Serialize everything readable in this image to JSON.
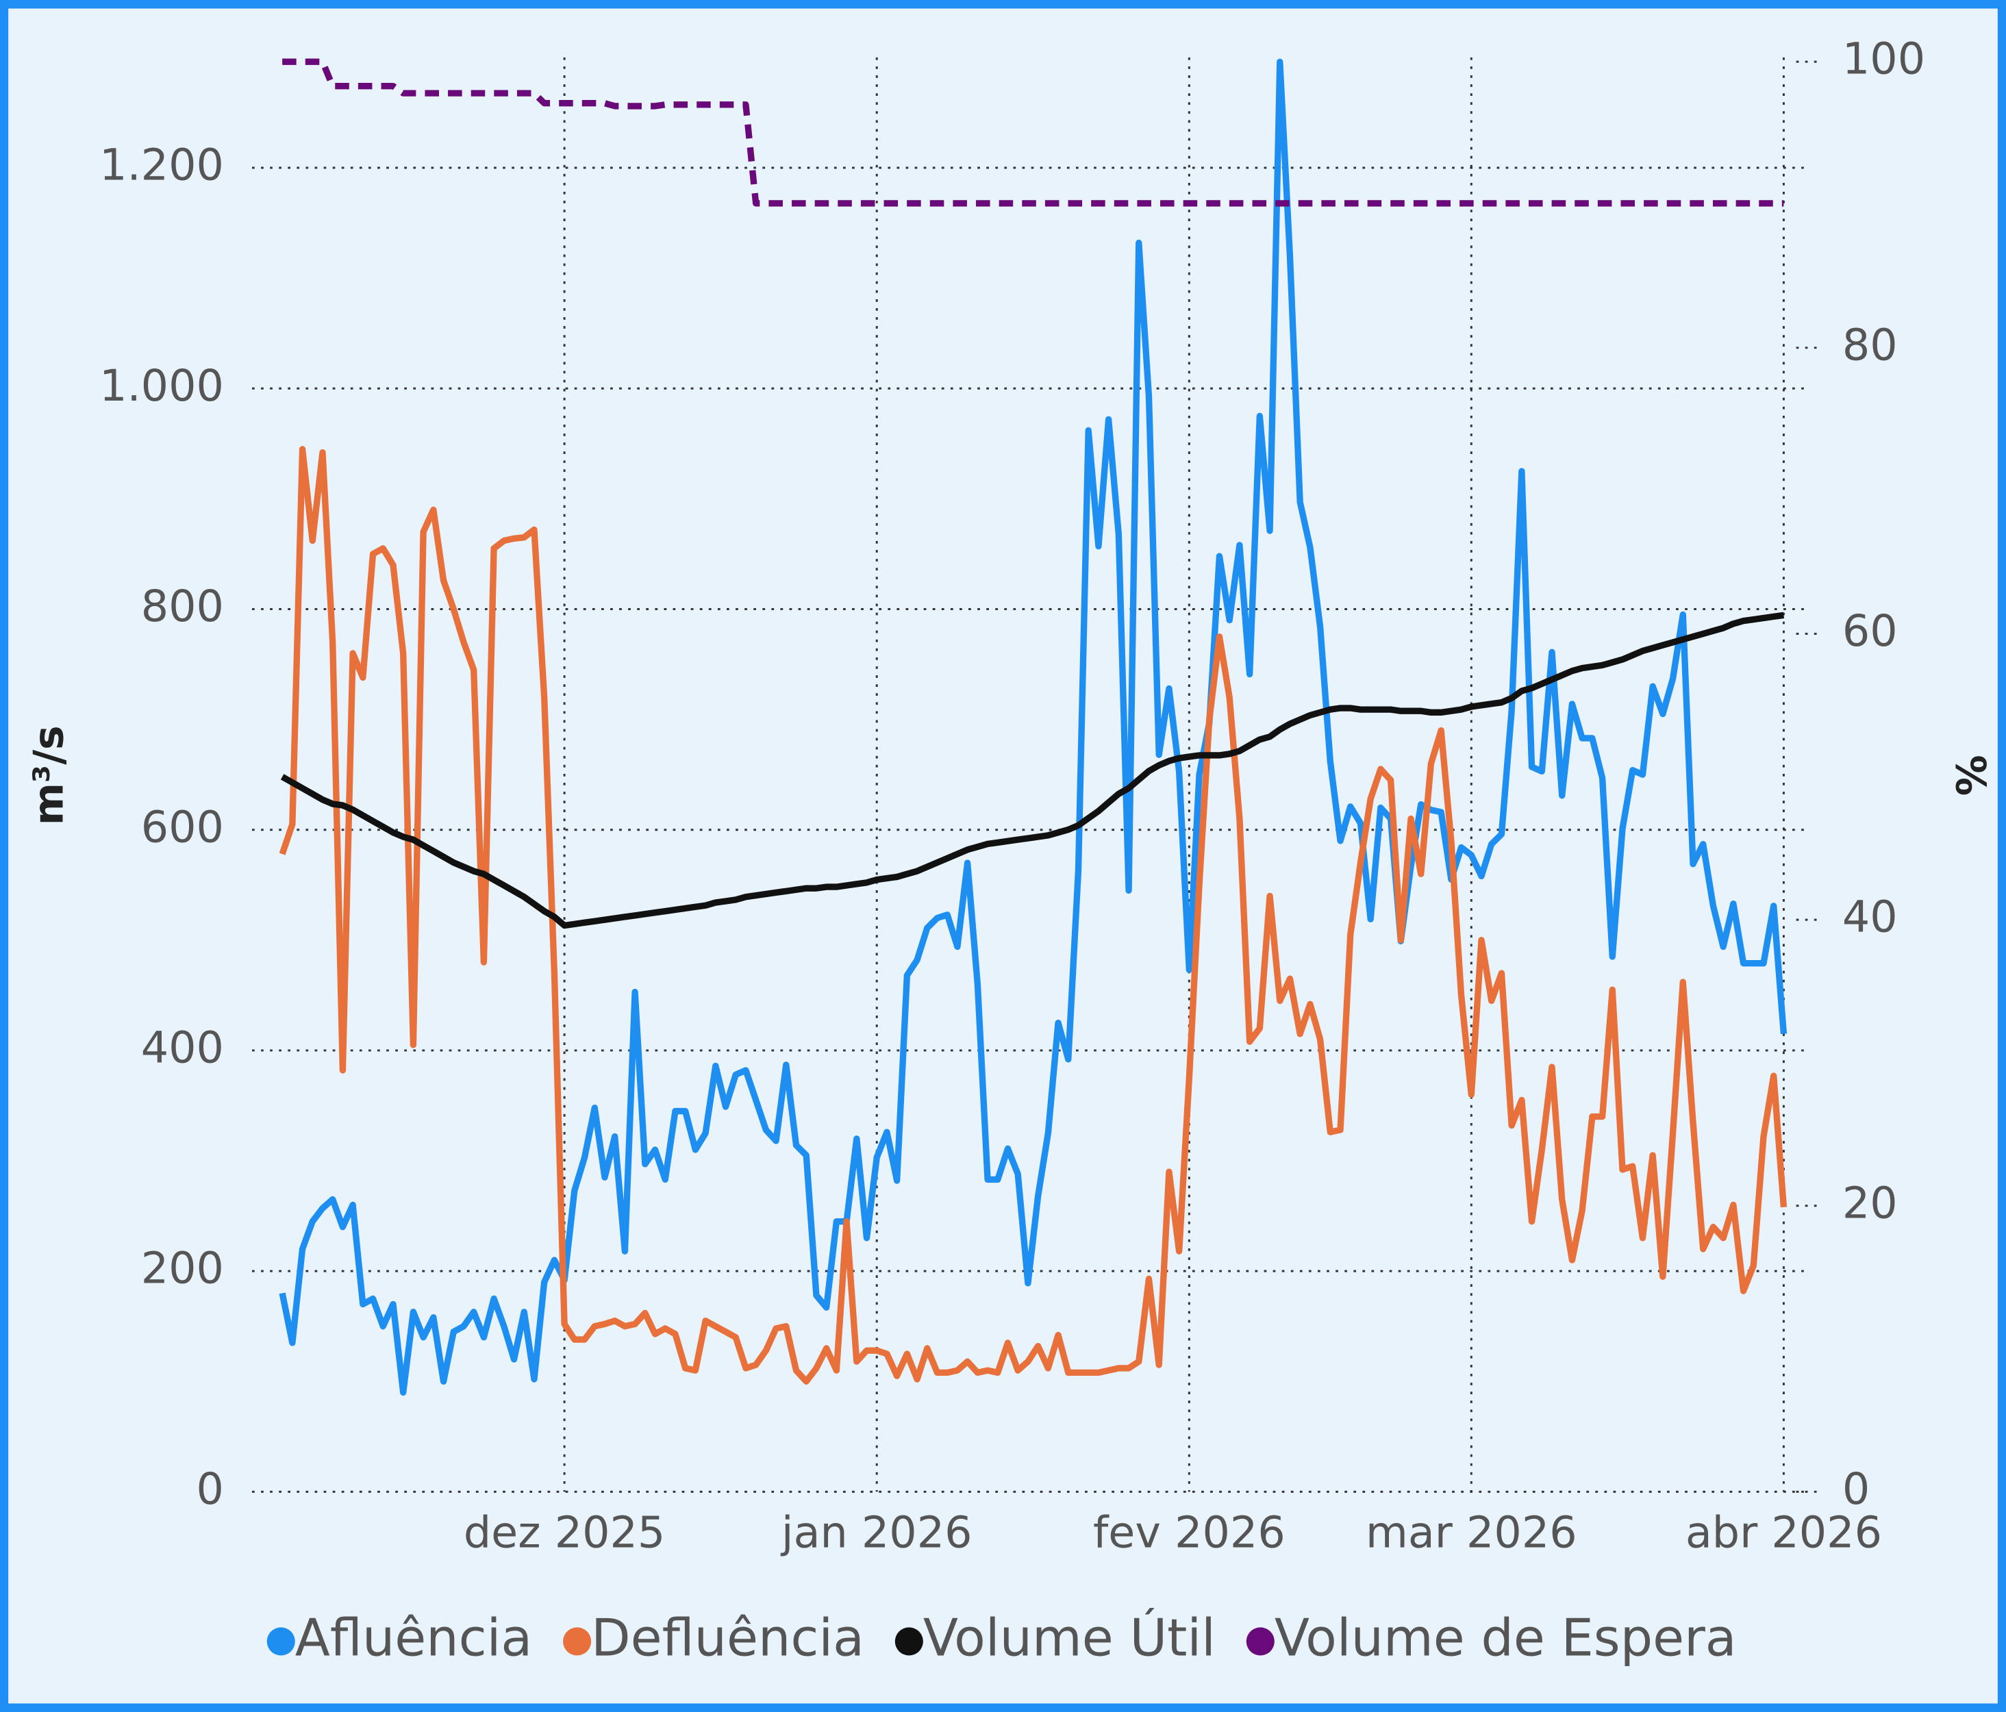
{
  "chart_data": {
    "type": "line",
    "ylabel": "m³/s",
    "y2label": "%",
    "x": [
      "2025-11-03",
      "2025-11-04",
      "2025-11-05",
      "2025-11-06",
      "2025-11-07",
      "2025-11-08",
      "2025-11-09",
      "2025-11-10",
      "2025-11-11",
      "2025-11-12",
      "2025-11-13",
      "2025-11-14",
      "2025-11-15",
      "2025-11-16",
      "2025-11-17",
      "2025-11-18",
      "2025-11-19",
      "2025-11-20",
      "2025-11-21",
      "2025-11-22",
      "2025-11-23",
      "2025-11-24",
      "2025-11-25",
      "2025-11-26",
      "2025-11-27",
      "2025-11-28",
      "2025-11-29",
      "2025-11-30",
      "2025-12-01",
      "2025-12-02",
      "2025-12-03",
      "2025-12-04",
      "2025-12-05",
      "2025-12-06",
      "2025-12-07",
      "2025-12-08",
      "2025-12-09",
      "2025-12-10",
      "2025-12-11",
      "2025-12-12",
      "2025-12-13",
      "2025-12-14",
      "2025-12-15",
      "2025-12-16",
      "2025-12-17",
      "2025-12-18",
      "2025-12-19",
      "2025-12-20",
      "2025-12-21",
      "2025-12-22",
      "2025-12-23",
      "2025-12-24",
      "2025-12-25",
      "2025-12-26",
      "2025-12-27",
      "2025-12-28",
      "2025-12-29",
      "2025-12-30",
      "2025-12-31",
      "2026-01-01",
      "2026-01-02",
      "2026-01-03",
      "2026-01-04",
      "2026-01-05",
      "2026-01-06",
      "2026-01-07",
      "2026-01-08",
      "2026-01-09",
      "2026-01-10",
      "2026-01-11",
      "2026-01-12",
      "2026-01-13",
      "2026-01-14",
      "2026-01-15",
      "2026-01-16",
      "2026-01-17",
      "2026-01-18",
      "2026-01-19",
      "2026-01-20",
      "2026-01-21",
      "2026-01-22",
      "2026-01-23",
      "2026-01-24",
      "2026-01-25",
      "2026-01-26",
      "2026-01-27",
      "2026-01-28",
      "2026-01-29",
      "2026-01-30",
      "2026-01-31",
      "2026-02-01",
      "2026-02-02",
      "2026-02-03",
      "2026-02-04",
      "2026-02-05",
      "2026-02-06",
      "2026-02-07",
      "2026-02-08",
      "2026-02-09",
      "2026-02-10",
      "2026-02-11",
      "2026-02-12",
      "2026-02-13",
      "2026-02-14",
      "2026-02-15",
      "2026-02-16",
      "2026-02-17",
      "2026-02-18",
      "2026-02-19",
      "2026-02-20",
      "2026-02-21",
      "2026-02-22",
      "2026-02-23",
      "2026-02-24",
      "2026-02-25",
      "2026-02-26",
      "2026-02-27",
      "2026-02-28",
      "2026-03-01",
      "2026-03-02",
      "2026-03-03",
      "2026-03-04",
      "2026-03-05",
      "2026-03-06",
      "2026-03-07",
      "2026-03-08",
      "2026-03-09",
      "2026-03-10",
      "2026-03-11",
      "2026-03-12",
      "2026-03-13",
      "2026-03-14",
      "2026-03-15",
      "2026-03-16",
      "2026-03-17",
      "2026-03-18",
      "2026-03-19",
      "2026-03-20",
      "2026-03-21",
      "2026-03-22",
      "2026-03-23",
      "2026-03-24",
      "2026-03-25",
      "2026-03-26",
      "2026-03-27",
      "2026-03-28",
      "2026-03-29",
      "2026-03-30",
      "2026-03-31",
      "2026-04-01"
    ],
    "series": [
      {
        "name": "Afluência",
        "color": "#1e8ff0",
        "values": [
          180,
          135,
          220,
          245,
          257,
          265,
          240,
          260,
          170,
          175,
          150,
          170,
          90,
          163,
          140,
          158,
          100,
          145,
          150,
          163,
          140,
          175,
          150,
          120,
          163,
          102,
          190,
          210,
          192,
          273,
          303,
          348,
          285,
          322,
          218,
          453,
          297,
          310,
          283,
          345,
          345,
          310,
          325,
          386,
          349,
          378,
          382,
          355,
          328,
          318,
          387,
          314,
          305,
          178,
          167,
          245,
          245,
          320,
          230,
          303,
          326,
          282,
          468,
          482,
          511,
          520,
          523,
          494,
          570,
          460,
          283,
          283,
          311,
          288,
          189,
          268,
          325,
          425,
          392,
          563,
          962,
          857,
          972,
          868,
          545,
          1132,
          993,
          668,
          728,
          653,
          473,
          650,
          697,
          848,
          790,
          858,
          741,
          975,
          871,
          1296,
          1120,
          897,
          856,
          784,
          662,
          590,
          621,
          606,
          519,
          620,
          610,
          499,
          567,
          623,
          618,
          616,
          555,
          584,
          577,
          558,
          587,
          596,
          708,
          925,
          657,
          653,
          761,
          631,
          714,
          683,
          683,
          647,
          485,
          601,
          654,
          650,
          730,
          705,
          737,
          795,
          569,
          587,
          531,
          494,
          533,
          479,
          479,
          479,
          531,
          415
        ]
      },
      {
        "name": "Defluência",
        "color": "#e8703a",
        "values": [
          578,
          605,
          945,
          862,
          942,
          770,
          382,
          760,
          738,
          850,
          855,
          840,
          760,
          405,
          870,
          890,
          826,
          800,
          770,
          745,
          480,
          855,
          862,
          864,
          865,
          872,
          720,
          470,
          152,
          138,
          138,
          150,
          152,
          155,
          150,
          152,
          162,
          143,
          148,
          143,
          112,
          110,
          155,
          150,
          145,
          140,
          112,
          115,
          128,
          148,
          150,
          110,
          100,
          112,
          130,
          110,
          245,
          118,
          128,
          128,
          125,
          105,
          125,
          102,
          130,
          108,
          108,
          110,
          118,
          108,
          110,
          108,
          135,
          110,
          118,
          132,
          112,
          142,
          108,
          108,
          108,
          108,
          110,
          112,
          112,
          118,
          193,
          115,
          290,
          218,
          375,
          550,
          700,
          775,
          720,
          610,
          408,
          420,
          540,
          445,
          465,
          415,
          442,
          410,
          326,
          328,
          505,
          570,
          628,
          655,
          645,
          500,
          610,
          560,
          660,
          690,
          590,
          450,
          360,
          500,
          445,
          470,
          332,
          355,
          245,
          310,
          385,
          265,
          210,
          255,
          340,
          340,
          455,
          292,
          295,
          230,
          305,
          195,
          325,
          462,
          335,
          220,
          240,
          230,
          260,
          182,
          205,
          322,
          377,
          258
        ]
      },
      {
        "name": "Volume Útil",
        "color": "#111111",
        "axis": "y2",
        "values": [
          50.0,
          49.6,
          49.2,
          48.8,
          48.4,
          48.1,
          48.0,
          47.7,
          47.3,
          46.9,
          46.5,
          46.1,
          45.8,
          45.6,
          45.2,
          44.8,
          44.4,
          44.0,
          43.7,
          43.4,
          43.2,
          42.8,
          42.4,
          42.0,
          41.6,
          41.1,
          40.6,
          40.2,
          39.6,
          39.7,
          39.8,
          39.9,
          40.0,
          40.1,
          40.2,
          40.3,
          40.4,
          40.5,
          40.6,
          40.7,
          40.8,
          40.9,
          41.0,
          41.2,
          41.3,
          41.4,
          41.6,
          41.7,
          41.8,
          41.9,
          42.0,
          42.1,
          42.2,
          42.2,
          42.3,
          42.3,
          42.4,
          42.5,
          42.6,
          42.8,
          42.9,
          43.0,
          43.2,
          43.4,
          43.7,
          44.0,
          44.3,
          44.6,
          44.9,
          45.1,
          45.3,
          45.4,
          45.5,
          45.6,
          45.7,
          45.8,
          45.9,
          46.1,
          46.3,
          46.6,
          47.1,
          47.6,
          48.2,
          48.8,
          49.2,
          49.8,
          50.4,
          50.8,
          51.1,
          51.3,
          51.4,
          51.5,
          51.5,
          51.5,
          51.6,
          51.8,
          52.2,
          52.6,
          52.8,
          53.3,
          53.7,
          54.0,
          54.3,
          54.5,
          54.7,
          54.8,
          54.8,
          54.7,
          54.7,
          54.7,
          54.7,
          54.6,
          54.6,
          54.6,
          54.5,
          54.5,
          54.6,
          54.7,
          54.9,
          55.0,
          55.1,
          55.2,
          55.5,
          56.0,
          56.2,
          56.5,
          56.8,
          57.1,
          57.4,
          57.6,
          57.7,
          57.8,
          58.0,
          58.2,
          58.5,
          58.8,
          59.0,
          59.2,
          59.4,
          59.6,
          59.8,
          60.0,
          60.2,
          60.4,
          60.7,
          60.9,
          61.0,
          61.1,
          61.2,
          61.3
        ]
      },
      {
        "name": "Volume de Espera",
        "color": "#6a0a7a",
        "axis": "y2",
        "dashed": true,
        "values": [
          100,
          100,
          100,
          100,
          100,
          98.3,
          98.3,
          98.3,
          98.3,
          98.3,
          98.3,
          98.3,
          97.8,
          97.8,
          97.8,
          97.8,
          97.8,
          97.8,
          97.8,
          97.8,
          97.8,
          97.8,
          97.8,
          97.8,
          97.8,
          97.8,
          97.1,
          97.1,
          97.1,
          97.1,
          97.1,
          97.1,
          97.1,
          96.9,
          96.9,
          96.9,
          96.9,
          96.9,
          97.0,
          97.0,
          97.0,
          97.0,
          97.0,
          97.0,
          97.0,
          97.0,
          97.0,
          90.1,
          90.1,
          90.1,
          90.1,
          90.1,
          90.1,
          90.1,
          90.1,
          90.1,
          90.1,
          90.1,
          90.1,
          90.1,
          90.1,
          90.1,
          90.1,
          90.1,
          90.1,
          90.1,
          90.1,
          90.1,
          90.1,
          90.1,
          90.1,
          90.1,
          90.1,
          90.1,
          90.1,
          90.1,
          90.1,
          90.1,
          90.1,
          90.1,
          90.1,
          90.1,
          90.1,
          90.1,
          90.1,
          90.1,
          90.1,
          90.1,
          90.1,
          90.1,
          90.1,
          90.1,
          90.1,
          90.1,
          90.1,
          90.1,
          90.1,
          90.1,
          90.1,
          90.1,
          90.1,
          90.1,
          90.1,
          90.1,
          90.1,
          90.1,
          90.1,
          90.1,
          90.1,
          90.1,
          90.1,
          90.1,
          90.1,
          90.1,
          90.1,
          90.1,
          90.1,
          90.1,
          90.1,
          90.1,
          90.1,
          90.1,
          90.1,
          90.1,
          90.1,
          90.1,
          90.1,
          90.1,
          90.1,
          90.1,
          90.1,
          90.1,
          90.1,
          90.1,
          90.1,
          90.1,
          90.1,
          90.1,
          90.1,
          90.1,
          90.1,
          90.1,
          90.1,
          90.1,
          90.1,
          90.1,
          90.1,
          90.1,
          90.1,
          90.1
        ]
      }
    ],
    "xlim": [
      "2025-10-31",
      "2026-04-03"
    ],
    "xticks": [
      {
        "value": "2025-12-01",
        "label": "dez 2025"
      },
      {
        "value": "2026-01-01",
        "label": "jan 2026"
      },
      {
        "value": "2026-02-01",
        "label": "fev 2026"
      },
      {
        "value": "2026-03-01",
        "label": "mar 2026"
      },
      {
        "value": "2026-04-01",
        "label": "abr 2026"
      }
    ],
    "ylim": [
      0,
      1300
    ],
    "yticks": [
      0,
      200,
      400,
      600,
      800,
      {
        "value": 1000,
        "label": "1.000"
      },
      {
        "value": 1200,
        "label": "1.200"
      }
    ],
    "y2lim": [
      0,
      100.3
    ],
    "y2ticks": [
      0,
      20,
      40,
      60,
      80,
      100
    ],
    "grid": true,
    "legend": "bottom"
  }
}
